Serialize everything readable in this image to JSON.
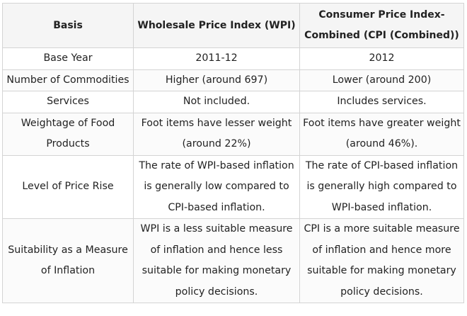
{
  "table": {
    "headers": [
      "Basis",
      "Wholesale Price Index (WPI)",
      "Consumer Price Index-Combined (CPI (Combined))"
    ],
    "rows": [
      [
        "Base Year",
        "2011-12",
        "2012"
      ],
      [
        "Number of Commodities",
        "Higher (around 697)",
        "Lower (around 200)"
      ],
      [
        "Services",
        "Not included.",
        "Includes services."
      ],
      [
        "Weightage of Food Products",
        "Foot items have lesser weight (around 22%)",
        "Foot items have greater weight (around 46%)."
      ],
      [
        "Level of Price Rise",
        "The rate of WPI-based inflation is generally low compared to CPI-based inflation.",
        "The rate of CPI-based inflation is generally high compared to WPI-based inflation."
      ],
      [
        "Suitability as a Measure of Inflation",
        "WPI is a less suitable measure of inflation and hence less suitable for making monetary policy decisions.",
        "CPI is a more suitable measure of inflation and hence more suitable for making monetary policy decisions."
      ]
    ]
  }
}
